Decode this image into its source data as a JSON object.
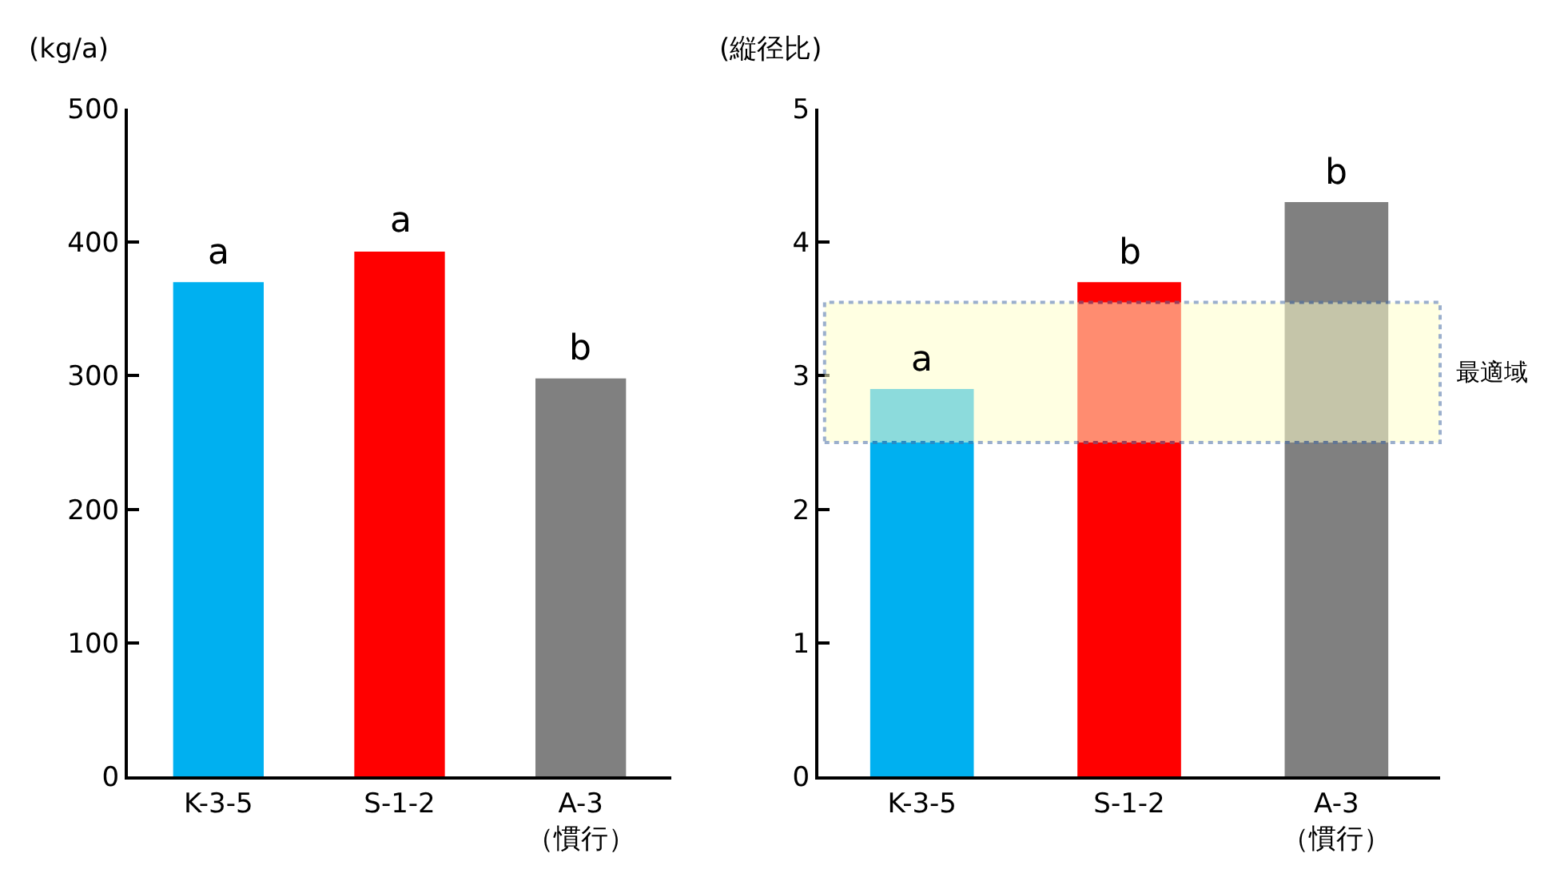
{
  "chart_data": [
    {
      "type": "bar",
      "ylabel": "(kg/a)",
      "categories": [
        "K-3-5",
        "S-1-2",
        "A-3\n（慣行）"
      ],
      "values": [
        370,
        393,
        298
      ],
      "colors": [
        "#00b0f0",
        "#ff0000",
        "#808080"
      ],
      "ylim": [
        0,
        500
      ],
      "yticks": [
        0,
        100,
        200,
        300,
        400,
        500
      ],
      "annotations": [
        {
          "text": "a",
          "x": "K-3-5",
          "y": 370
        },
        {
          "text": "a",
          "x": "S-1-2",
          "y": 393
        },
        {
          "text": "b",
          "x": "A-3\n（慣行）",
          "y": 298
        }
      ]
    },
    {
      "type": "bar",
      "ylabel": "(縦径比)",
      "categories": [
        "K-3-5",
        "S-1-2",
        "A-3\n（慣行）"
      ],
      "values": [
        2.9,
        3.7,
        4.3
      ],
      "colors": [
        "#00b0f0",
        "#ff0000",
        "#808080"
      ],
      "ylim": [
        0,
        5
      ],
      "yticks": [
        0,
        1,
        2,
        3,
        4,
        5
      ],
      "bands": [
        {
          "axis": "y",
          "from": 2.5,
          "to": 3.55,
          "label": "最適域",
          "color": "#ffffcc"
        }
      ],
      "annotations": [
        {
          "text": "a",
          "x": "K-3-5",
          "y": 2.9
        },
        {
          "text": "b",
          "x": "S-1-2",
          "y": 3.7
        },
        {
          "text": "b",
          "x": "A-3\n（慣行）",
          "y": 4.3
        }
      ]
    }
  ]
}
